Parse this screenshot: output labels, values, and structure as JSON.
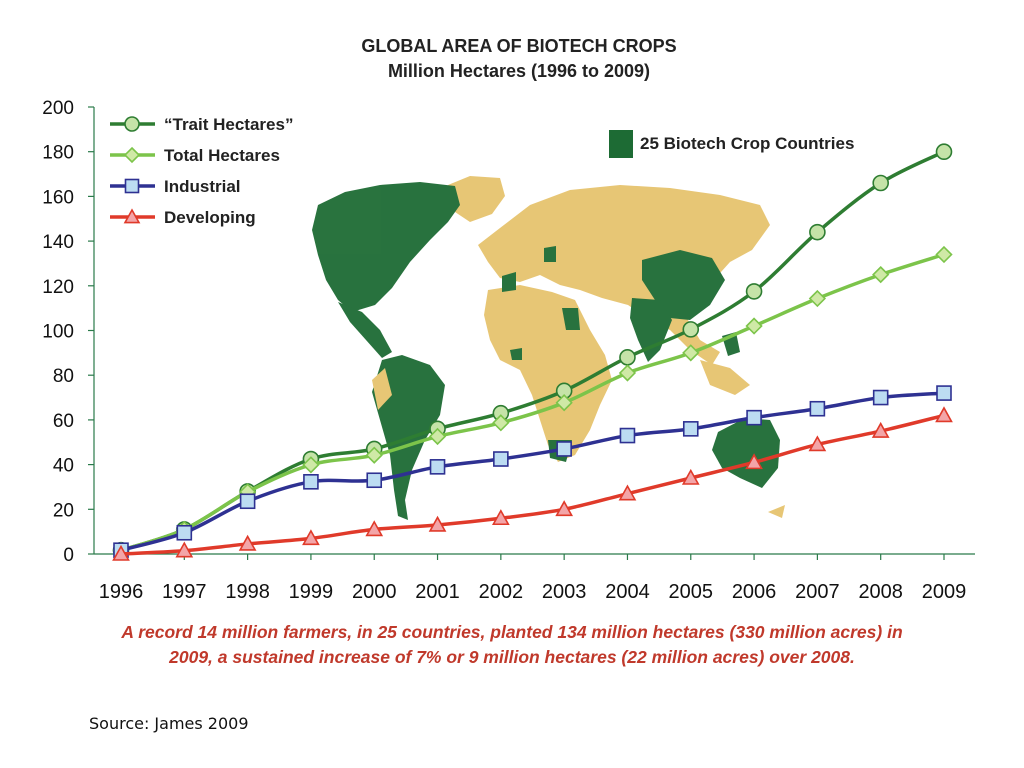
{
  "chart_data": {
    "type": "line",
    "title": "GLOBAL AREA OF BIOTECH CROPS",
    "subtitle": "Million Hectares (1996 to 2009)",
    "x": [
      "1996",
      "1997",
      "1998",
      "1999",
      "2000",
      "2001",
      "2002",
      "2003",
      "2004",
      "2005",
      "2006",
      "2007",
      "2008",
      "2009"
    ],
    "ylim": [
      0,
      200
    ],
    "yticks": [
      "0",
      "20",
      "40",
      "60",
      "80",
      "100",
      "120",
      "140",
      "160",
      "180",
      "200"
    ],
    "series": [
      {
        "name": "“Trait Hectares”",
        "marker": "circle",
        "color": "#2e7d32",
        "fill": "#c5e3a8",
        "values": [
          1.7,
          11,
          28,
          42.5,
          47,
          56,
          63,
          73,
          88,
          100.5,
          117.5,
          144,
          166,
          180
        ]
      },
      {
        "name": "Total Hectares",
        "marker": "diamond",
        "color": "#7cc44a",
        "fill": "#cfe9a6",
        "values": [
          1.7,
          11,
          27.8,
          39.9,
          44.2,
          52.6,
          58.7,
          67.7,
          81,
          90,
          102,
          114.3,
          125,
          134
        ]
      },
      {
        "name": "Industrial",
        "marker": "square",
        "color": "#2e3192",
        "fill": "#bcdcf2",
        "values": [
          1.7,
          9.5,
          23.6,
          32.3,
          33,
          39,
          42.5,
          47,
          53,
          56,
          61,
          65,
          70,
          72
        ]
      },
      {
        "name": "Developing",
        "marker": "triangle",
        "color": "#e03a2a",
        "fill": "#f3a5a8",
        "values": [
          0,
          1.5,
          4.5,
          7,
          11,
          13,
          16,
          20,
          27,
          34,
          41,
          49,
          55,
          62
        ]
      }
    ],
    "legend_position": "top-left",
    "map_legend": {
      "label": "25 Biotech Crop Countries",
      "color": "#1d6b34"
    },
    "map_colors": {
      "biotech": "#1d6b34",
      "other": "#e6c36e"
    },
    "grid": false
  },
  "caption": {
    "line1": "A record 14 million farmers, in 25 countries, planted 134 million hectares (330 million acres) in",
    "line2": "2009, a sustained increase of 7% or 9 million hectares (22 million acres) over 2008."
  },
  "source": "Source: James 2009"
}
